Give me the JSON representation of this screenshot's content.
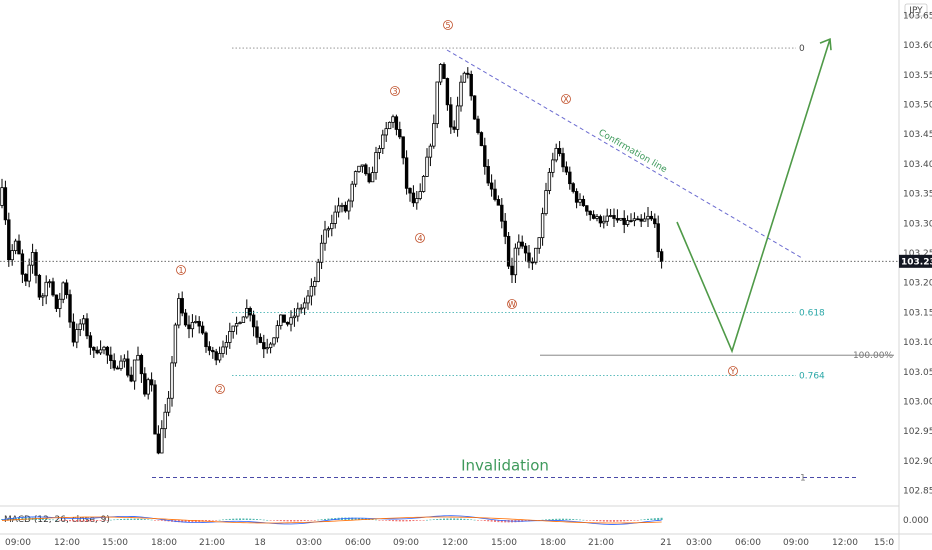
{
  "chart_data": {
    "type": "candlestick",
    "symbol_currency": "JPY",
    "y_axis": {
      "ticks": [
        "103.650",
        "103.600",
        "103.550",
        "103.500",
        "103.450",
        "103.400",
        "103.350",
        "103.300",
        "103.250",
        "103.200",
        "103.150",
        "103.100",
        "103.050",
        "103.000",
        "102.950",
        "102.900",
        "102.850"
      ],
      "range": [
        102.82,
        103.67
      ],
      "last_price": "103.236"
    },
    "x_axis": {
      "ticks": [
        "09:00",
        "12:00",
        "15:00",
        "18:00",
        "21:00",
        "18",
        "03:00",
        "06:00",
        "09:00",
        "12:00",
        "15:00",
        "18:00",
        "21:00",
        "21",
        "03:00",
        "06:00",
        "09:00",
        "12:00",
        "15:0"
      ]
    },
    "wave_labels": [
      "1",
      "2",
      "3",
      "4",
      "5",
      "W",
      "X",
      "Y"
    ],
    "fib_levels": [
      {
        "label": "0",
        "price": 103.595
      },
      {
        "label": "0.618",
        "price": 103.15
      },
      {
        "label": "100.00%",
        "price": 103.078
      },
      {
        "label": "0.764",
        "price": 103.044
      },
      {
        "label": "1",
        "price": 102.872
      }
    ],
    "annotations": {
      "invalidation": "Invalidation",
      "confirmation": "Confirmation line"
    },
    "projection": {
      "down_target": 103.085,
      "up_target": 103.61
    },
    "indicator": {
      "label": "MACD (12, 26, close, 9)",
      "axis_value": "0.000"
    },
    "colors": {
      "candle": "#000000",
      "dotted_level": "#888888",
      "fib_teal": "#2aa7a7",
      "confirmation": "#6b6bd0",
      "invalidation_line": "#4a4aa8",
      "projection": "#4f9a48",
      "price_tag": "#131722",
      "wave_label": "#c0502a"
    }
  }
}
